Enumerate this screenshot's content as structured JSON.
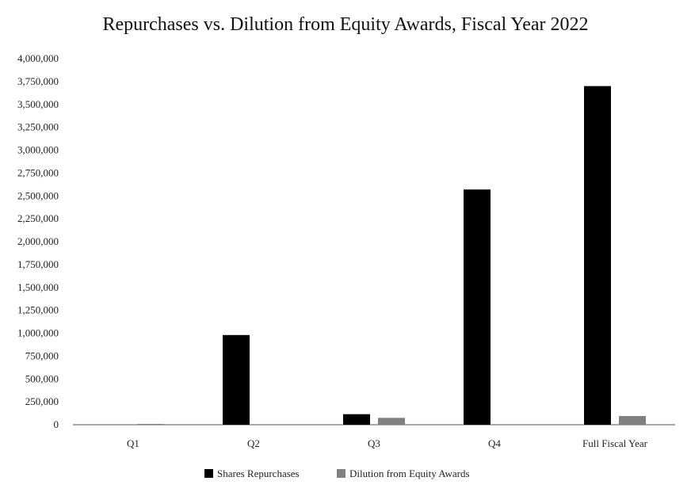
{
  "chart_data": {
    "type": "bar",
    "title": "Repurchases vs. Dilution from Equity Awards, Fiscal Year 2022",
    "xlabel": "",
    "ylabel": "",
    "categories": [
      "Q1",
      "Q2",
      "Q3",
      "Q4",
      "Full Fiscal Year"
    ],
    "series": [
      {
        "name": "Shares Repurchases",
        "color": "#000000",
        "values": [
          0,
          980000,
          115000,
          2570000,
          3700000
        ]
      },
      {
        "name": "Dilution from Equity Awards",
        "color": "#808080",
        "values": [
          8000,
          0,
          75000,
          0,
          95000
        ]
      }
    ],
    "ylim": [
      0,
      4000000
    ],
    "yticks": [
      "4,000,000",
      "3,750,000",
      "3,500,000",
      "3,250,000",
      "3,000,000",
      "2,750,000",
      "2,500,000",
      "2,250,000",
      "2,000,000",
      "1,750,000",
      "1,500,000",
      "1,250,000",
      "1,000,000",
      "750,000",
      "500,000",
      "250,000",
      "0"
    ],
    "grid": false,
    "legend_position": "bottom"
  }
}
